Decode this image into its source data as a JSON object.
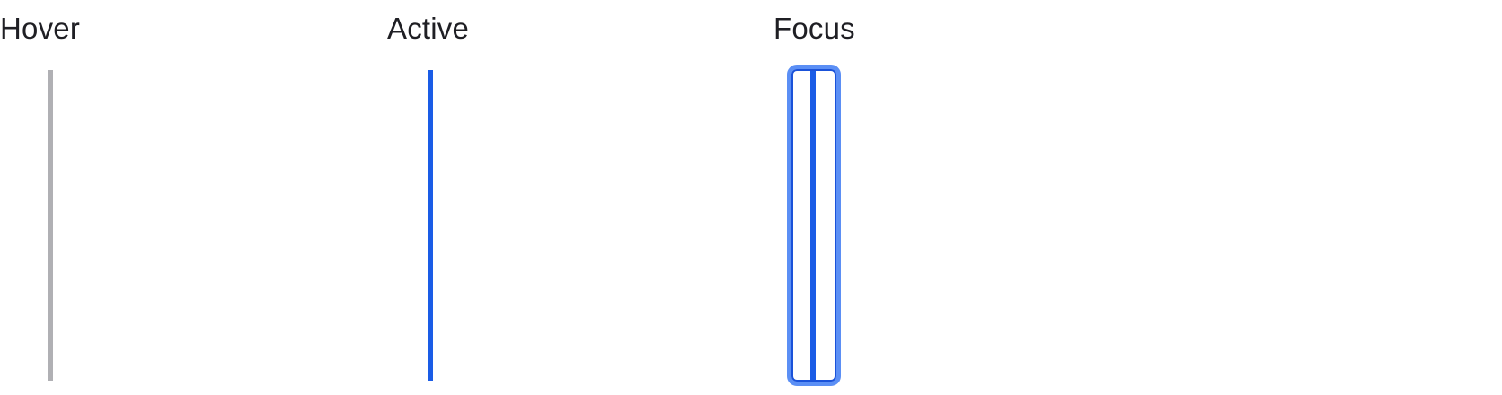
{
  "states": {
    "hover": {
      "label": "Hover"
    },
    "active": {
      "label": "Active"
    },
    "focus": {
      "label": "Focus"
    }
  },
  "colors": {
    "hover_line": "#b0b0b4",
    "active_line": "#1a5ce6",
    "focus_ring": "#5b8ff5",
    "focus_inner_border": "#1a52d9"
  }
}
